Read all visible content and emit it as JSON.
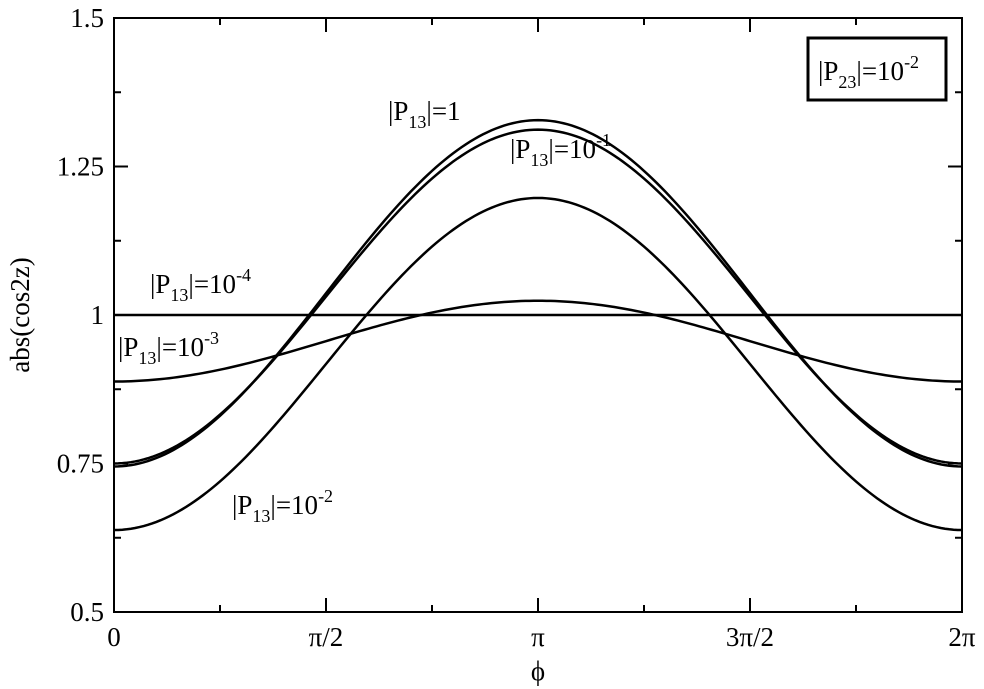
{
  "chart_data": {
    "type": "line",
    "xlabel": "ϕ",
    "ylabel": "abs(cos2z)",
    "xlim": [
      0,
      6.283185
    ],
    "ylim": [
      0.5,
      1.5
    ],
    "grid": false,
    "x_ticks": [
      {
        "value": 0,
        "label": "0"
      },
      {
        "value": 1.570796,
        "label": "π/2"
      },
      {
        "value": 3.141593,
        "label": "π"
      },
      {
        "value": 4.712389,
        "label": "3π/2"
      },
      {
        "value": 6.283185,
        "label": "2π"
      }
    ],
    "y_ticks": [
      {
        "value": 0.5,
        "label": "0.5"
      },
      {
        "value": 0.75,
        "label": "0.75"
      },
      {
        "value": 1.0,
        "label": "1"
      },
      {
        "value": 1.25,
        "label": "1.25"
      },
      {
        "value": 1.5,
        "label": "1.5"
      }
    ],
    "legend_box": {
      "prefix": "|P",
      "sub": "23",
      "mid": "|=10",
      "sup": "-2",
      "placement": "top-right"
    },
    "series": [
      {
        "curve": "cosine",
        "min": 0.745,
        "max": 1.328,
        "label": {
          "prefix": "|P",
          "sub": "13",
          "mid": "|=1",
          "sup": ""
        }
      },
      {
        "curve": "cosine",
        "min": 0.75,
        "max": 1.312,
        "label": {
          "prefix": "|P",
          "sub": "13",
          "mid": "|=10",
          "sup": "-1"
        }
      },
      {
        "curve": "cosine",
        "min": 0.638,
        "max": 1.197,
        "label": {
          "prefix": "|P",
          "sub": "13",
          "mid": "|=10",
          "sup": "-2"
        }
      },
      {
        "curve": "cosine",
        "min": 0.888,
        "max": 1.024,
        "label": {
          "prefix": "|P",
          "sub": "13",
          "mid": "|=10",
          "sup": "-3"
        }
      },
      {
        "curve": "cosine",
        "min": 1.0,
        "max": 1.0,
        "label": {
          "prefix": "|P",
          "sub": "13",
          "mid": "|=10",
          "sup": "-4"
        }
      }
    ]
  }
}
